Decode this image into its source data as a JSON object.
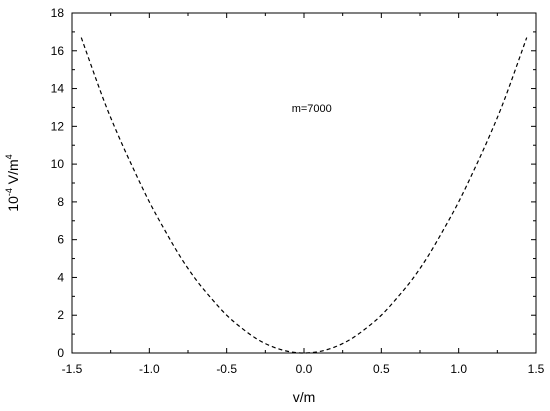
{
  "chart_data": {
    "type": "line",
    "xlabel": "v/m",
    "ylabel": {
      "base": "10",
      "exp1": "-4",
      "mid": " V/m",
      "exp2": "4"
    },
    "xlim": [
      -1.5,
      1.5
    ],
    "ylim": [
      0,
      18
    ],
    "x_ticks": [
      -1.5,
      -1.0,
      -0.5,
      0.0,
      0.5,
      1.0,
      1.5
    ],
    "x_tick_labels": [
      "-1.5",
      "-1.0",
      "-0.5",
      "0.0",
      "0.5",
      "1.0",
      "1.5"
    ],
    "y_ticks": [
      0,
      2,
      4,
      6,
      8,
      10,
      12,
      14,
      16,
      18
    ],
    "y_tick_labels": [
      "0",
      "2",
      "4",
      "6",
      "8",
      "10",
      "12",
      "14",
      "16",
      "18"
    ],
    "grid": false,
    "annotation": {
      "text": "m=7000",
      "x": 0.05,
      "y": 12.75
    },
    "series": [
      {
        "style": "dashed",
        "color": "#000000",
        "x": [
          -1.44,
          -1.3,
          -1.2,
          -1.1,
          -1.0,
          -0.9,
          -0.8,
          -0.7,
          -0.6,
          -0.5,
          -0.4,
          -0.3,
          -0.2,
          -0.1,
          0.0,
          0.1,
          0.2,
          0.3,
          0.4,
          0.5,
          0.6,
          0.7,
          0.8,
          0.9,
          1.0,
          1.1,
          1.2,
          1.3,
          1.44
        ],
        "y": [
          16.7,
          13.5,
          11.5,
          9.7,
          8.0,
          6.5,
          5.1,
          3.9,
          2.9,
          2.0,
          1.3,
          0.72,
          0.32,
          0.08,
          0.0,
          0.08,
          0.32,
          0.72,
          1.3,
          2.0,
          2.9,
          3.9,
          5.1,
          6.5,
          8.0,
          9.7,
          11.5,
          13.5,
          16.7
        ]
      }
    ]
  }
}
